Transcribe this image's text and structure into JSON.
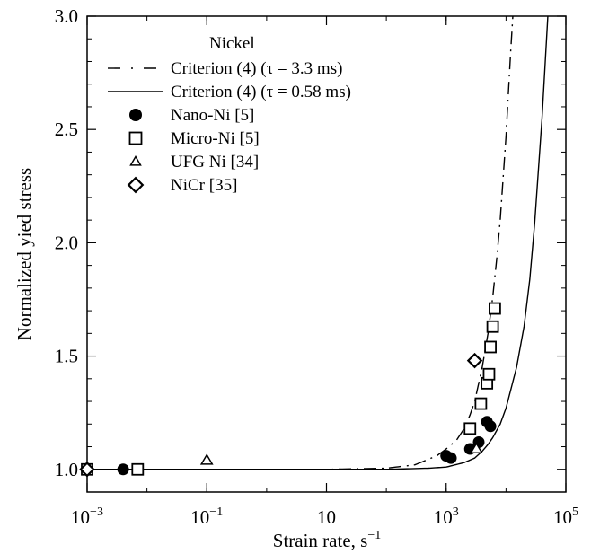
{
  "chart_data": {
    "type": "line",
    "xscale": "log",
    "xlim": [
      0.001,
      100000
    ],
    "ylim": [
      0.9,
      3.0
    ],
    "grid": false,
    "xlabel": "Strain rate, s",
    "xlabel_exp": "−1",
    "ylabel": "Normalized yied stress",
    "x_ticks": [
      {
        "value": 0.001,
        "base": "10",
        "exp": "−3"
      },
      {
        "value": 0.1,
        "base": "10",
        "exp": "−1"
      },
      {
        "value": 10,
        "base": "10",
        "exp": ""
      },
      {
        "value": 1000,
        "base": "10",
        "exp": "3"
      },
      {
        "value": 100000,
        "base": "10",
        "exp": "5"
      }
    ],
    "y_ticks": [
      {
        "value": 1.0,
        "label": "1.0"
      },
      {
        "value": 1.5,
        "label": "1.5"
      },
      {
        "value": 2.0,
        "label": "2.0"
      },
      {
        "value": 2.5,
        "label": "2.5"
      },
      {
        "value": 3.0,
        "label": "3.0"
      }
    ],
    "legend_title": "Nickel",
    "legend_placement": "top-left",
    "series": [
      {
        "name": "Criterion (4) (τ = 3.3 ms)",
        "kind": "line",
        "style": "dashdot",
        "points": [
          [
            0.001,
            1.0
          ],
          [
            1,
            1.0
          ],
          [
            10,
            1.0
          ],
          [
            100,
            1.005
          ],
          [
            300,
            1.02
          ],
          [
            700,
            1.06
          ],
          [
            1000,
            1.09
          ],
          [
            1500,
            1.13
          ],
          [
            2000,
            1.18
          ],
          [
            2500,
            1.24
          ],
          [
            3000,
            1.3
          ],
          [
            4000,
            1.45
          ],
          [
            5000,
            1.6
          ],
          [
            6000,
            1.76
          ],
          [
            7000,
            1.93
          ],
          [
            8000,
            2.1
          ],
          [
            10000,
            2.47
          ],
          [
            12000,
            2.85
          ],
          [
            13000,
            3.0
          ]
        ]
      },
      {
        "name": "Criterion (4) (τ = 0.58 ms)",
        "kind": "line",
        "style": "solid",
        "points": [
          [
            0.001,
            1.0
          ],
          [
            10,
            1.0
          ],
          [
            100,
            1.0
          ],
          [
            500,
            1.005
          ],
          [
            1000,
            1.01
          ],
          [
            2000,
            1.03
          ],
          [
            3000,
            1.05
          ],
          [
            4000,
            1.08
          ],
          [
            5000,
            1.11
          ],
          [
            6000,
            1.14
          ],
          [
            8000,
            1.2
          ],
          [
            10000,
            1.27
          ],
          [
            15000,
            1.45
          ],
          [
            20000,
            1.63
          ],
          [
            25000,
            1.84
          ],
          [
            30000,
            2.08
          ],
          [
            40000,
            2.55
          ],
          [
            50000,
            3.0
          ]
        ]
      },
      {
        "name": "Nano-Ni [5]",
        "kind": "scatter",
        "marker": "filled-circle",
        "points": [
          [
            0.001,
            1.0
          ],
          [
            0.004,
            1.0
          ],
          [
            1000,
            1.06
          ],
          [
            1200,
            1.05
          ],
          [
            2500,
            1.09
          ],
          [
            3500,
            1.12
          ],
          [
            4800,
            1.21
          ],
          [
            5500,
            1.19
          ]
        ]
      },
      {
        "name": "Micro-Ni [5]",
        "kind": "scatter",
        "marker": "open-square",
        "points": [
          [
            0.001,
            1.0
          ],
          [
            0.007,
            1.0
          ],
          [
            2500,
            1.18
          ],
          [
            3800,
            1.29
          ],
          [
            4800,
            1.38
          ],
          [
            5200,
            1.42
          ],
          [
            5500,
            1.54
          ],
          [
            6000,
            1.63
          ],
          [
            6500,
            1.71
          ]
        ]
      },
      {
        "name": "UFG Ni [34]",
        "kind": "scatter",
        "marker": "open-triangle",
        "points": [
          [
            0.1,
            1.04
          ],
          [
            3200,
            1.09
          ]
        ]
      },
      {
        "name": "NiCr [35]",
        "kind": "scatter",
        "marker": "open-diamond",
        "points": [
          [
            0.001,
            1.0
          ],
          [
            3000,
            1.48
          ]
        ]
      }
    ]
  }
}
